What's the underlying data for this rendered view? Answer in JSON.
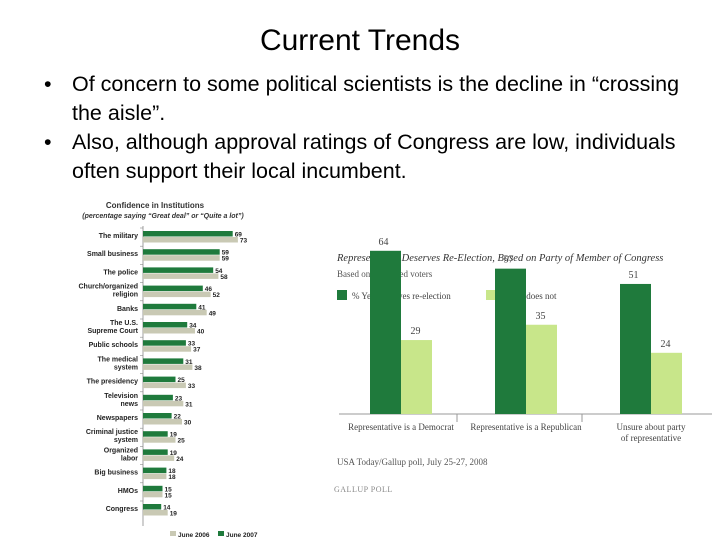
{
  "slide": {
    "title": "Current Trends",
    "bullets": [
      "Of concern to some political scientists is the decline in “crossing the aisle”.",
      "Also, although approval ratings of Congress are low, individuals often support their local incumbent."
    ]
  },
  "colors": {
    "dark_green": "#1f7a3c",
    "light_green": "#c8e68a",
    "gray_bar": "#c9c9b4"
  },
  "chart_data": [
    {
      "type": "bar",
      "orientation": "horizontal",
      "title": "Confidence in Institutions",
      "subtitle": "(percentage saying “Great deal” or “Quite a lot”)",
      "categories": [
        "The military",
        "Small business",
        "The police",
        "Church/organized religion",
        "Banks",
        "The U.S. Supreme Court",
        "Public schools",
        "The medical system",
        "The presidency",
        "Television news",
        "Newspapers",
        "Criminal justice system",
        "Organized labor",
        "Big business",
        "HMOs",
        "Congress"
      ],
      "series": [
        {
          "name": "June 2006",
          "values": [
            73,
            59,
            58,
            52,
            49,
            40,
            37,
            38,
            33,
            31,
            30,
            25,
            24,
            18,
            15,
            19
          ]
        },
        {
          "name": "June 2007",
          "values": [
            69,
            59,
            54,
            46,
            41,
            34,
            33,
            31,
            25,
            23,
            22,
            19,
            19,
            18,
            15,
            14
          ]
        }
      ],
      "xlim": [
        0,
        80
      ]
    },
    {
      "type": "bar",
      "title": "Representative Deserves Re-Election, Based on Party of Member of Congress",
      "subtitle": "Based on registered voters",
      "categories": [
        "Representative is a Democrat",
        "Representative is a Republican",
        "Unsure about party of representative"
      ],
      "series": [
        {
          "name": "% Yes, deserves re-election",
          "values": [
            64,
            57,
            51
          ]
        },
        {
          "name": "% No, does not",
          "values": [
            29,
            35,
            24
          ]
        }
      ],
      "ylim": [
        0,
        70
      ],
      "source": "USA Today/Gallup poll, July 25-27, 2008",
      "logo": "GALLUP POLL",
      "legend_position": "top-left"
    }
  ]
}
